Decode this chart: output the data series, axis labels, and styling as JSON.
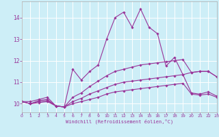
{
  "xlabel": "Windchill (Refroidissement éolien,°C)",
  "bg_color": "#cdeef7",
  "grid_color": "#ffffff",
  "line_color": "#993399",
  "spine_color": "#aaaaaa",
  "xmin": 0,
  "xmax": 23,
  "ymin": 9.6,
  "ymax": 14.75,
  "yticks": [
    10,
    11,
    12,
    13,
    14
  ],
  "series": [
    {
      "x": [
        0,
        1,
        2,
        3,
        4,
        5,
        6,
        7,
        8,
        9,
        10,
        11,
        12,
        13,
        14,
        15,
        16,
        17,
        18,
        19,
        20,
        21,
        22,
        23
      ],
      "y": [
        10.1,
        10.1,
        10.2,
        10.3,
        9.9,
        9.85,
        11.6,
        11.1,
        11.5,
        11.8,
        13.0,
        14.0,
        14.25,
        13.55,
        14.4,
        13.55,
        13.25,
        11.75,
        12.15,
        11.35,
        11.45,
        11.5,
        11.5,
        11.25
      ]
    },
    {
      "x": [
        0,
        1,
        2,
        3,
        4,
        5,
        6,
        7,
        8,
        9,
        10,
        11,
        12,
        13,
        14,
        15,
        16,
        17,
        18,
        19,
        20,
        21,
        22,
        23
      ],
      "y": [
        10.1,
        10.0,
        10.15,
        10.2,
        9.9,
        9.85,
        10.3,
        10.5,
        10.8,
        11.05,
        11.3,
        11.5,
        11.6,
        11.7,
        11.8,
        11.85,
        11.9,
        11.95,
        12.0,
        12.05,
        11.45,
        11.5,
        11.5,
        11.25
      ]
    },
    {
      "x": [
        0,
        1,
        2,
        3,
        4,
        5,
        6,
        7,
        8,
        9,
        10,
        11,
        12,
        13,
        14,
        15,
        16,
        17,
        18,
        19,
        20,
        21,
        22,
        23
      ],
      "y": [
        10.1,
        10.0,
        10.1,
        10.15,
        9.9,
        9.85,
        10.1,
        10.25,
        10.45,
        10.6,
        10.75,
        10.9,
        11.0,
        11.05,
        11.1,
        11.15,
        11.2,
        11.25,
        11.3,
        11.35,
        10.5,
        10.45,
        10.55,
        10.35
      ]
    },
    {
      "x": [
        0,
        1,
        2,
        3,
        4,
        5,
        6,
        7,
        8,
        9,
        10,
        11,
        12,
        13,
        14,
        15,
        16,
        17,
        18,
        19,
        20,
        21,
        22,
        23
      ],
      "y": [
        10.1,
        10.0,
        10.05,
        10.1,
        9.9,
        9.85,
        10.0,
        10.1,
        10.2,
        10.3,
        10.45,
        10.55,
        10.6,
        10.65,
        10.7,
        10.75,
        10.8,
        10.85,
        10.9,
        10.95,
        10.45,
        10.4,
        10.45,
        10.3
      ]
    }
  ]
}
